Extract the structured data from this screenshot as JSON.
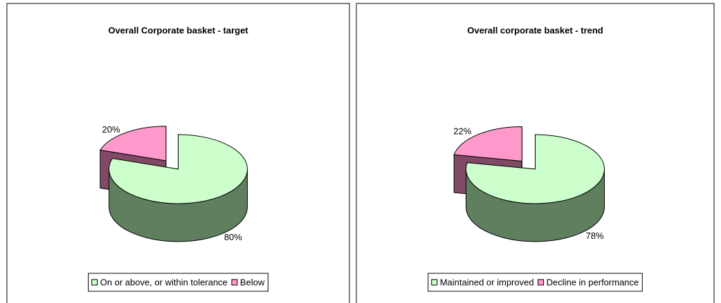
{
  "chart_data": [
    {
      "type": "pie3d",
      "title": "Overall Corporate basket - target",
      "categories": [
        "On or above, or within tolerance",
        "Below"
      ],
      "values": [
        80,
        20
      ],
      "value_labels": [
        "80%",
        "20%"
      ],
      "colors": [
        "#ccffcc",
        "#ff99cc"
      ],
      "side_colors": [
        "#5f7f5f",
        "#804a66"
      ],
      "legend": "bottom"
    },
    {
      "type": "pie3d",
      "title": "Overall corporate basket - trend",
      "categories": [
        "Maintained or improved",
        "Decline in performance"
      ],
      "values": [
        78,
        22
      ],
      "value_labels": [
        "78%",
        "22%"
      ],
      "colors": [
        "#ccffcc",
        "#ff99cc"
      ],
      "side_colors": [
        "#5f7f5f",
        "#804a66"
      ],
      "legend": "bottom"
    }
  ]
}
